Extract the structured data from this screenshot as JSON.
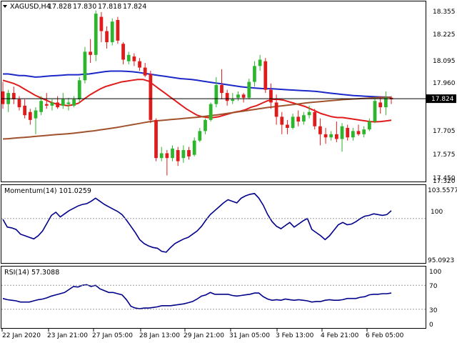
{
  "main": {
    "symbol_label": "XAGUSD,H4",
    "ohlc": {
      "open": "17.828",
      "high": "17.830",
      "low": "17.818",
      "close": "17.824"
    },
    "current_price": "17.824",
    "price_ticks": [
      "18.355",
      "18.225",
      "18.095",
      "17.960",
      "17.705",
      "17.575",
      "17.450",
      "17.320"
    ]
  },
  "momentum": {
    "label": "Momentum(14) 101.0259",
    "ticks": [
      "103.5577",
      "100",
      "95.0923"
    ]
  },
  "rsi": {
    "label": "RSI(14) 57.3088",
    "ticks": [
      "100",
      "70",
      "30",
      "0"
    ]
  },
  "time_axis": {
    "labels": [
      "22 Jan 2020",
      "23 Jan 21:00",
      "27 Jan 05:00",
      "28 Jan 13:00",
      "29 Jan 21:00",
      "31 Jan 05:00",
      "3 Feb 13:00",
      "4 Feb 21:00",
      "6 Feb 05:00"
    ]
  },
  "colors": {
    "bull": "#2db52d",
    "bear": "#e01b1b",
    "ma_blue": "#1c28c8",
    "ma_red": "#e01b1b",
    "ma_brown": "#a0522d",
    "indicator": "#00008b",
    "level_line": "#000000"
  },
  "chart_data": {
    "type": "candlestick",
    "price_range": [
      17.32,
      18.41
    ],
    "current_price": 17.824,
    "candles": [
      {
        "o": 17.87,
        "h": 17.93,
        "l": 17.76,
        "c": 17.79
      },
      {
        "o": 17.79,
        "h": 17.88,
        "l": 17.74,
        "c": 17.86
      },
      {
        "o": 17.86,
        "h": 17.9,
        "l": 17.79,
        "c": 17.82
      },
      {
        "o": 17.82,
        "h": 17.84,
        "l": 17.75,
        "c": 17.77
      },
      {
        "o": 17.78,
        "h": 17.82,
        "l": 17.7,
        "c": 17.72
      },
      {
        "o": 17.74,
        "h": 17.76,
        "l": 17.66,
        "c": 17.69
      },
      {
        "o": 17.7,
        "h": 17.77,
        "l": 17.6,
        "c": 17.75
      },
      {
        "o": 17.74,
        "h": 17.84,
        "l": 17.72,
        "c": 17.81
      },
      {
        "o": 17.79,
        "h": 17.86,
        "l": 17.76,
        "c": 17.78
      },
      {
        "o": 17.78,
        "h": 17.82,
        "l": 17.75,
        "c": 17.8
      },
      {
        "o": 17.8,
        "h": 17.84,
        "l": 17.76,
        "c": 17.77
      },
      {
        "o": 17.78,
        "h": 17.86,
        "l": 17.76,
        "c": 17.82
      },
      {
        "o": 17.79,
        "h": 17.83,
        "l": 17.75,
        "c": 17.8
      },
      {
        "o": 17.78,
        "h": 17.84,
        "l": 17.77,
        "c": 17.82
      },
      {
        "o": 17.82,
        "h": 17.96,
        "l": 17.8,
        "c": 17.94
      },
      {
        "o": 17.94,
        "h": 18.15,
        "l": 17.92,
        "c": 18.12
      },
      {
        "o": 18.12,
        "h": 18.2,
        "l": 18.05,
        "c": 18.1
      },
      {
        "o": 18.1,
        "h": 18.38,
        "l": 18.06,
        "c": 18.36
      },
      {
        "o": 18.34,
        "h": 18.37,
        "l": 18.18,
        "c": 18.25
      },
      {
        "o": 18.25,
        "h": 18.28,
        "l": 18.14,
        "c": 18.18
      },
      {
        "o": 18.18,
        "h": 18.33,
        "l": 18.16,
        "c": 18.31
      },
      {
        "o": 18.32,
        "h": 18.34,
        "l": 18.17,
        "c": 18.19
      },
      {
        "o": 18.17,
        "h": 18.18,
        "l": 18.04,
        "c": 18.07
      },
      {
        "o": 18.06,
        "h": 18.12,
        "l": 18.04,
        "c": 18.1
      },
      {
        "o": 18.09,
        "h": 18.11,
        "l": 18.03,
        "c": 18.06
      },
      {
        "o": 18.06,
        "h": 18.08,
        "l": 18.0,
        "c": 18.02
      },
      {
        "o": 18.02,
        "h": 18.05,
        "l": 17.96,
        "c": 17.97
      },
      {
        "o": 17.98,
        "h": 18.0,
        "l": 17.67,
        "c": 17.69
      },
      {
        "o": 17.69,
        "h": 17.7,
        "l": 17.43,
        "c": 17.45
      },
      {
        "o": 17.45,
        "h": 17.52,
        "l": 17.43,
        "c": 17.48
      },
      {
        "o": 17.48,
        "h": 17.5,
        "l": 17.34,
        "c": 17.45
      },
      {
        "o": 17.45,
        "h": 17.53,
        "l": 17.43,
        "c": 17.51
      },
      {
        "o": 17.5,
        "h": 17.52,
        "l": 17.4,
        "c": 17.43
      },
      {
        "o": 17.45,
        "h": 17.53,
        "l": 17.42,
        "c": 17.5
      },
      {
        "o": 17.5,
        "h": 17.52,
        "l": 17.44,
        "c": 17.46
      },
      {
        "o": 17.47,
        "h": 17.58,
        "l": 17.46,
        "c": 17.56
      },
      {
        "o": 17.56,
        "h": 17.64,
        "l": 17.55,
        "c": 17.62
      },
      {
        "o": 17.62,
        "h": 17.7,
        "l": 17.6,
        "c": 17.69
      },
      {
        "o": 17.69,
        "h": 17.8,
        "l": 17.68,
        "c": 17.79
      },
      {
        "o": 17.79,
        "h": 17.96,
        "l": 17.77,
        "c": 17.91
      },
      {
        "o": 17.91,
        "h": 18.01,
        "l": 17.82,
        "c": 17.86
      },
      {
        "o": 17.86,
        "h": 17.88,
        "l": 17.78,
        "c": 17.81
      },
      {
        "o": 17.81,
        "h": 17.86,
        "l": 17.79,
        "c": 17.82
      },
      {
        "o": 17.83,
        "h": 17.87,
        "l": 17.81,
        "c": 17.85
      },
      {
        "o": 17.85,
        "h": 17.86,
        "l": 17.8,
        "c": 17.83
      },
      {
        "o": 17.83,
        "h": 17.95,
        "l": 17.82,
        "c": 17.93
      },
      {
        "o": 17.93,
        "h": 18.06,
        "l": 17.9,
        "c": 18.03
      },
      {
        "o": 18.03,
        "h": 18.1,
        "l": 18.0,
        "c": 18.07
      },
      {
        "o": 18.06,
        "h": 18.08,
        "l": 17.86,
        "c": 17.88
      },
      {
        "o": 17.88,
        "h": 17.92,
        "l": 17.76,
        "c": 17.8
      },
      {
        "o": 17.8,
        "h": 17.85,
        "l": 17.66,
        "c": 17.71
      },
      {
        "o": 17.71,
        "h": 17.74,
        "l": 17.6,
        "c": 17.66
      },
      {
        "o": 17.66,
        "h": 17.69,
        "l": 17.6,
        "c": 17.64
      },
      {
        "o": 17.64,
        "h": 17.73,
        "l": 17.63,
        "c": 17.71
      },
      {
        "o": 17.71,
        "h": 17.75,
        "l": 17.65,
        "c": 17.68
      },
      {
        "o": 17.68,
        "h": 17.74,
        "l": 17.66,
        "c": 17.72
      },
      {
        "o": 17.72,
        "h": 17.78,
        "l": 17.7,
        "c": 17.74
      },
      {
        "o": 17.74,
        "h": 17.76,
        "l": 17.63,
        "c": 17.65
      },
      {
        "o": 17.65,
        "h": 17.7,
        "l": 17.53,
        "c": 17.6
      },
      {
        "o": 17.6,
        "h": 17.64,
        "l": 17.54,
        "c": 17.58
      },
      {
        "o": 17.58,
        "h": 17.62,
        "l": 17.56,
        "c": 17.6
      },
      {
        "o": 17.6,
        "h": 17.68,
        "l": 17.55,
        "c": 17.57
      },
      {
        "o": 17.57,
        "h": 17.67,
        "l": 17.49,
        "c": 17.65
      },
      {
        "o": 17.64,
        "h": 17.66,
        "l": 17.56,
        "c": 17.58
      },
      {
        "o": 17.58,
        "h": 17.64,
        "l": 17.56,
        "c": 17.62
      },
      {
        "o": 17.62,
        "h": 17.66,
        "l": 17.59,
        "c": 17.6
      },
      {
        "o": 17.6,
        "h": 17.65,
        "l": 17.58,
        "c": 17.63
      },
      {
        "o": 17.63,
        "h": 17.7,
        "l": 17.62,
        "c": 17.68
      },
      {
        "o": 17.68,
        "h": 17.83,
        "l": 17.67,
        "c": 17.81
      },
      {
        "o": 17.8,
        "h": 17.84,
        "l": 17.73,
        "c": 17.77
      },
      {
        "o": 17.77,
        "h": 17.87,
        "l": 17.72,
        "c": 17.83
      },
      {
        "o": 17.83,
        "h": 17.84,
        "l": 17.79,
        "c": 17.82
      }
    ],
    "moving_averages": [
      {
        "color": "blue",
        "values": [
          17.98,
          17.98,
          17.975,
          17.97,
          17.97,
          17.965,
          17.96,
          17.962,
          17.965,
          17.968,
          17.97,
          17.972,
          17.975,
          17.975,
          17.975,
          17.978,
          17.98,
          17.985,
          17.99,
          17.995,
          17.998,
          17.998,
          17.998,
          17.996,
          17.994,
          17.99,
          17.985,
          17.98,
          17.975,
          17.97,
          17.965,
          17.96,
          17.955,
          17.95,
          17.948,
          17.945,
          17.94,
          17.935,
          17.93,
          17.925,
          17.92,
          17.915,
          17.91,
          17.905,
          17.9,
          17.896,
          17.893,
          17.89,
          17.888,
          17.887,
          17.886,
          17.884,
          17.882,
          17.88,
          17.878,
          17.876,
          17.874,
          17.872,
          17.87,
          17.866,
          17.862,
          17.858,
          17.854,
          17.85,
          17.847,
          17.844,
          17.842,
          17.84,
          17.838,
          17.836,
          17.835,
          17.834,
          17.833
        ]
      },
      {
        "color": "red",
        "values": [
          17.94,
          17.93,
          17.92,
          17.905,
          17.885,
          17.865,
          17.845,
          17.83,
          17.815,
          17.8,
          17.79,
          17.785,
          17.78,
          17.785,
          17.795,
          17.82,
          17.845,
          17.865,
          17.885,
          17.9,
          17.91,
          17.92,
          17.93,
          17.935,
          17.94,
          17.945,
          17.945,
          17.935,
          17.91,
          17.885,
          17.86,
          17.835,
          17.81,
          17.785,
          17.76,
          17.74,
          17.72,
          17.71,
          17.705,
          17.705,
          17.71,
          17.72,
          17.73,
          17.74,
          17.745,
          17.755,
          17.77,
          17.78,
          17.795,
          17.81,
          17.82,
          17.82,
          17.815,
          17.805,
          17.795,
          17.785,
          17.775,
          17.76,
          17.745,
          17.73,
          17.72,
          17.71,
          17.705,
          17.705,
          17.7,
          17.695,
          17.69,
          17.685,
          17.68,
          17.678,
          17.68,
          17.684,
          17.688
        ]
      },
      {
        "color": "brown",
        "values": [
          17.57,
          17.572,
          17.575,
          17.578,
          17.58,
          17.583,
          17.586,
          17.589,
          17.592,
          17.595,
          17.598,
          17.6,
          17.603,
          17.606,
          17.61,
          17.614,
          17.618,
          17.622,
          17.627,
          17.632,
          17.637,
          17.642,
          17.648,
          17.654,
          17.66,
          17.666,
          17.672,
          17.678,
          17.683,
          17.686,
          17.689,
          17.692,
          17.695,
          17.698,
          17.701,
          17.704,
          17.707,
          17.711,
          17.715,
          17.719,
          17.723,
          17.728,
          17.733,
          17.738,
          17.743,
          17.748,
          17.753,
          17.758,
          17.763,
          17.768,
          17.772,
          17.776,
          17.78,
          17.784,
          17.788,
          17.792,
          17.796,
          17.8,
          17.803,
          17.806,
          17.809,
          17.812,
          17.815,
          17.818,
          17.82,
          17.822,
          17.824,
          17.826,
          17.828,
          17.83,
          17.831,
          17.832,
          17.833
        ]
      }
    ],
    "momentum": {
      "range": [
        94.5,
        104.0
      ],
      "values": [
        99.9,
        98.9,
        98.8,
        98.6,
        98.0,
        97.8,
        97.6,
        97.4,
        97.8,
        98.4,
        99.4,
        100.4,
        100.8,
        100.2,
        100.6,
        101.0,
        101.3,
        101.6,
        101.8,
        101.9,
        102.2,
        102.6,
        102.2,
        101.8,
        101.5,
        101.2,
        100.9,
        100.5,
        99.8,
        99.0,
        98.2,
        97.3,
        96.8,
        96.5,
        96.3,
        96.2,
        95.8,
        95.7,
        96.3,
        96.8,
        97.1,
        97.4,
        97.6,
        98.0,
        98.4,
        99.0,
        99.8,
        100.5,
        101.0,
        101.5,
        102.0,
        102.4,
        102.2,
        102.0,
        102.6,
        102.9,
        103.1,
        103.2,
        102.6,
        101.7,
        100.5,
        99.6,
        99.0,
        98.7,
        99.1,
        99.5,
        98.9,
        99.3,
        99.7,
        100.0,
        98.6,
        98.2,
        97.8,
        97.3,
        97.8,
        98.5,
        99.2,
        99.5,
        99.2,
        99.3,
        99.6,
        100.0,
        100.3,
        100.4,
        100.6,
        100.5,
        100.4,
        100.5,
        101.0
      ]
    },
    "rsi": {
      "range": [
        0,
        100
      ],
      "values": [
        48,
        46,
        45,
        44,
        42,
        42,
        42,
        44,
        46,
        47,
        49,
        52,
        54,
        56,
        58,
        63,
        68,
        67,
        70,
        71,
        68,
        70,
        64,
        61,
        58,
        58,
        56,
        54,
        46,
        35,
        32,
        31,
        32,
        32,
        33,
        34,
        36,
        36,
        36,
        37,
        38,
        39,
        41,
        43,
        47,
        52,
        54,
        58,
        55,
        55,
        55,
        55,
        53,
        52,
        53,
        54,
        55,
        57,
        57,
        51,
        47,
        45,
        46,
        45,
        47,
        46,
        45,
        46,
        45,
        44,
        42,
        43,
        43,
        45,
        46,
        45,
        45,
        46,
        48,
        48,
        48,
        50,
        51,
        54,
        55,
        55,
        56,
        56,
        57
      ]
    }
  }
}
